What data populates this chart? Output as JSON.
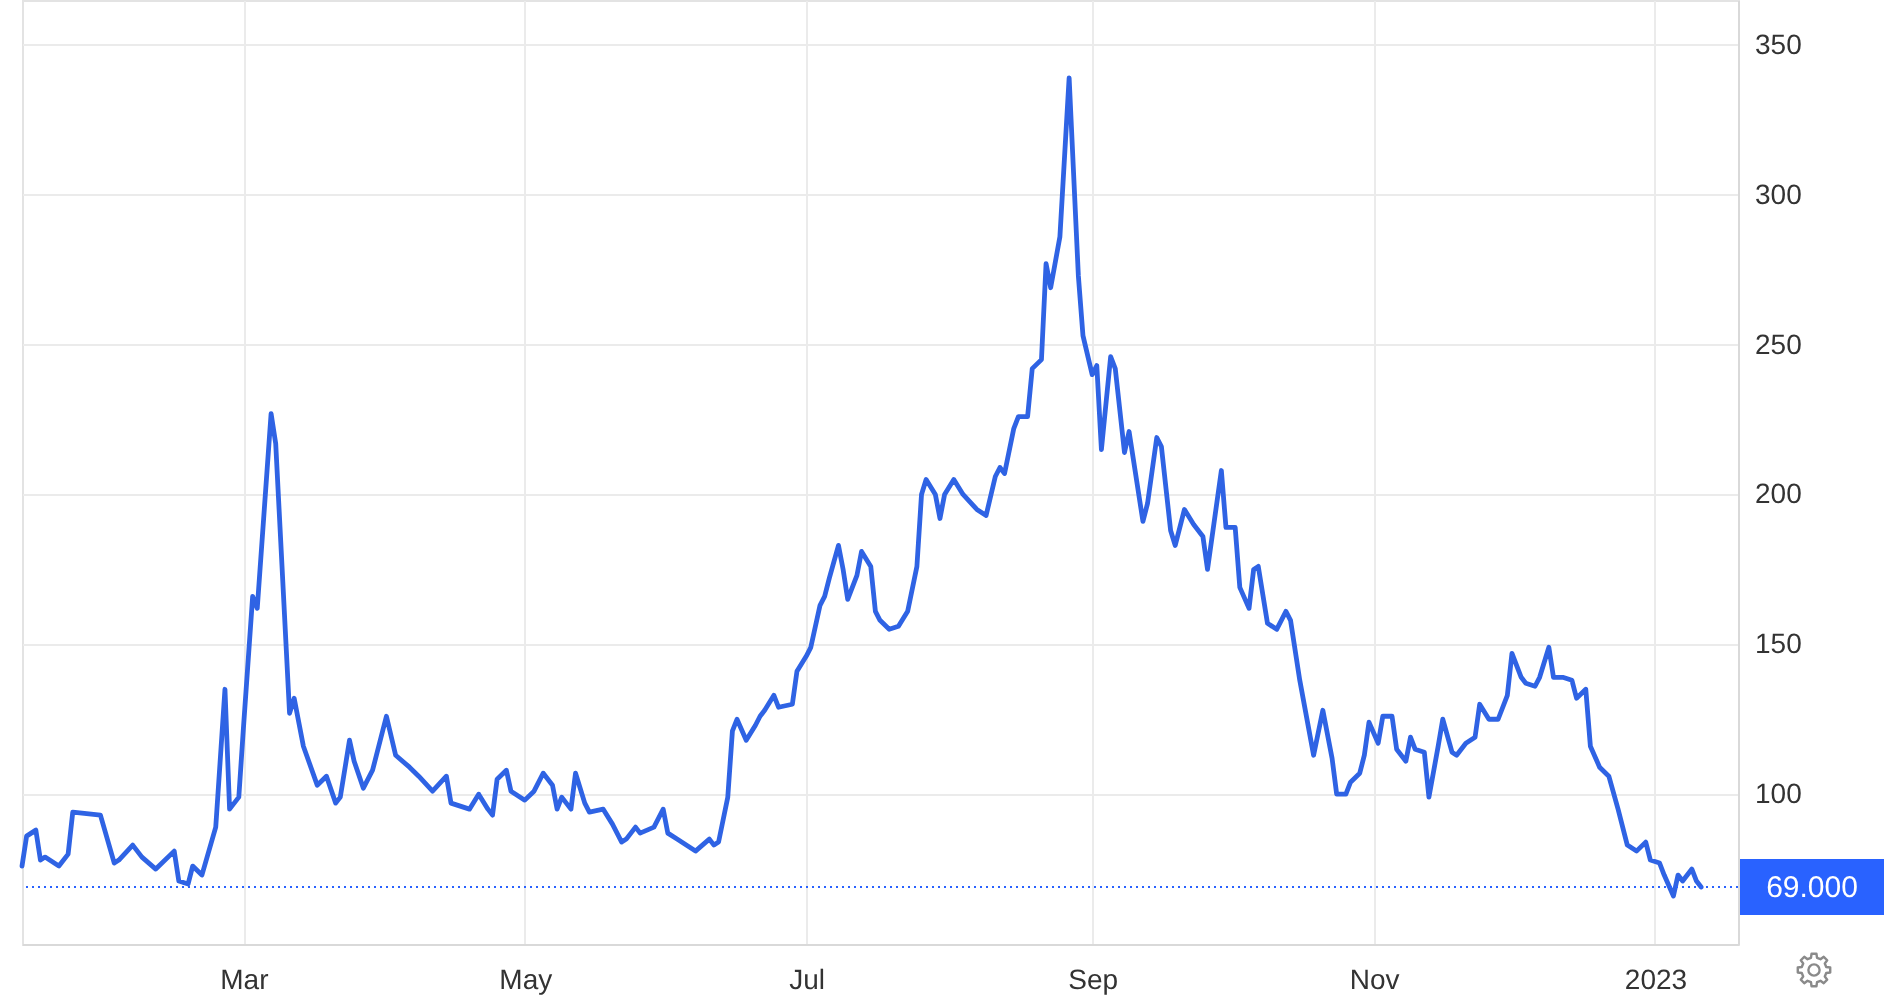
{
  "chart_data": {
    "type": "line",
    "x": [
      "2022-01-12",
      "2022-01-13",
      "2022-01-15",
      "2022-01-16",
      "2022-01-17",
      "2022-01-20",
      "2022-01-22",
      "2022-01-23",
      "2022-01-29",
      "2022-02-01",
      "2022-02-02",
      "2022-02-05",
      "2022-02-07",
      "2022-02-10",
      "2022-02-14",
      "2022-02-15",
      "2022-02-17",
      "2022-02-18",
      "2022-02-20",
      "2022-02-23",
      "2022-02-25",
      "2022-02-26",
      "2022-02-28",
      "2022-03-01",
      "2022-03-03",
      "2022-03-04",
      "2022-03-07",
      "2022-03-08",
      "2022-03-11",
      "2022-03-12",
      "2022-03-14",
      "2022-03-17",
      "2022-03-19",
      "2022-03-21",
      "2022-03-22",
      "2022-03-24",
      "2022-03-25",
      "2022-03-27",
      "2022-03-29",
      "2022-04-01",
      "2022-04-03",
      "2022-04-06",
      "2022-04-08",
      "2022-04-11",
      "2022-04-14",
      "2022-04-15",
      "2022-04-17",
      "2022-04-19",
      "2022-04-21",
      "2022-04-23",
      "2022-04-24",
      "2022-04-25",
      "2022-04-27",
      "2022-04-28",
      "2022-05-01",
      "2022-05-03",
      "2022-05-05",
      "2022-05-07",
      "2022-05-08",
      "2022-05-09",
      "2022-05-11",
      "2022-05-12",
      "2022-05-14",
      "2022-05-15",
      "2022-05-18",
      "2022-05-20",
      "2022-05-22",
      "2022-05-23",
      "2022-05-25",
      "2022-05-26",
      "2022-05-29",
      "2022-05-31",
      "2022-06-01",
      "2022-06-03",
      "2022-06-05",
      "2022-06-07",
      "2022-06-10",
      "2022-06-11",
      "2022-06-12",
      "2022-06-14",
      "2022-06-15",
      "2022-06-16",
      "2022-06-18",
      "2022-06-20",
      "2022-06-21",
      "2022-06-22",
      "2022-06-24",
      "2022-06-25",
      "2022-06-28",
      "2022-06-29",
      "2022-07-01",
      "2022-07-02",
      "2022-07-04",
      "2022-07-05",
      "2022-07-06",
      "2022-07-08",
      "2022-07-09",
      "2022-07-10",
      "2022-07-12",
      "2022-07-13",
      "2022-07-15",
      "2022-07-16",
      "2022-07-17",
      "2022-07-19",
      "2022-07-21",
      "2022-07-23",
      "2022-07-25",
      "2022-07-26",
      "2022-07-27",
      "2022-07-29",
      "2022-07-30",
      "2022-07-31",
      "2022-08-02",
      "2022-08-04",
      "2022-08-07",
      "2022-08-09",
      "2022-08-11",
      "2022-08-12",
      "2022-08-13",
      "2022-08-15",
      "2022-08-16",
      "2022-08-18",
      "2022-08-19",
      "2022-08-21",
      "2022-08-22",
      "2022-08-23",
      "2022-08-25",
      "2022-08-27",
      "2022-08-29",
      "2022-08-30",
      "2022-09-01",
      "2022-09-02",
      "2022-09-03",
      "2022-09-05",
      "2022-09-06",
      "2022-09-08",
      "2022-09-09",
      "2022-09-12",
      "2022-09-13",
      "2022-09-15",
      "2022-09-16",
      "2022-09-18",
      "2022-09-19",
      "2022-09-21",
      "2022-09-23",
      "2022-09-25",
      "2022-09-26",
      "2022-09-29",
      "2022-09-30",
      "2022-10-02",
      "2022-10-03",
      "2022-10-05",
      "2022-10-06",
      "2022-10-07",
      "2022-10-09",
      "2022-10-11",
      "2022-10-13",
      "2022-10-14",
      "2022-10-16",
      "2022-10-19",
      "2022-10-21",
      "2022-10-23",
      "2022-10-24",
      "2022-10-26",
      "2022-10-27",
      "2022-10-29",
      "2022-10-30",
      "2022-10-31",
      "2022-11-02",
      "2022-11-03",
      "2022-11-05",
      "2022-11-06",
      "2022-11-08",
      "2022-11-09",
      "2022-11-10",
      "2022-11-12",
      "2022-11-13",
      "2022-11-15",
      "2022-11-16",
      "2022-11-18",
      "2022-11-19",
      "2022-11-21",
      "2022-11-23",
      "2022-11-24",
      "2022-11-26",
      "2022-11-28",
      "2022-11-30",
      "2022-12-01",
      "2022-12-03",
      "2022-12-04",
      "2022-12-06",
      "2022-12-07",
      "2022-12-09",
      "2022-12-10",
      "2022-12-12",
      "2022-12-14",
      "2022-12-15",
      "2022-12-17",
      "2022-12-18",
      "2022-12-20",
      "2022-12-22",
      "2022-12-24",
      "2022-12-26",
      "2022-12-28",
      "2022-12-30",
      "2022-12-31",
      "2023-01-02",
      "2023-01-03",
      "2023-01-05",
      "2023-01-06",
      "2023-01-07",
      "2023-01-09",
      "2023-01-10",
      "2023-01-11"
    ],
    "series": [
      {
        "color": "#2f63e4",
        "values": [
          76,
          86,
          88,
          78,
          79,
          76,
          80,
          94,
          93,
          77,
          78,
          83,
          79,
          75,
          81,
          71,
          70,
          76,
          73,
          89,
          135,
          95,
          99,
          122,
          166,
          162,
          227,
          217,
          127,
          132,
          116,
          103,
          106,
          97,
          99,
          118,
          111,
          102,
          108,
          126,
          113,
          109,
          106,
          101,
          106,
          97,
          96,
          95,
          100,
          95,
          93,
          105,
          108,
          101,
          98,
          101,
          107,
          103,
          95,
          99,
          95,
          107,
          97,
          94,
          95,
          90,
          84,
          85,
          89,
          87,
          89,
          95,
          87,
          85,
          83,
          81,
          85,
          83,
          84,
          99,
          121,
          125,
          118,
          123,
          126,
          128,
          133,
          129,
          130,
          141,
          146,
          149,
          163,
          166,
          172,
          183,
          175,
          165,
          173,
          181,
          176,
          161,
          158,
          155,
          156,
          161,
          176,
          200,
          205,
          200,
          192,
          200,
          205,
          200,
          195,
          193,
          206,
          209,
          207,
          222,
          226,
          226,
          242,
          245,
          277,
          269,
          286,
          339,
          273,
          253,
          240,
          243,
          215,
          246,
          242,
          214,
          221,
          191,
          197,
          219,
          216,
          188,
          183,
          195,
          190,
          186,
          175,
          208,
          189,
          189,
          169,
          162,
          175,
          176,
          157,
          155,
          161,
          158,
          138,
          113,
          128,
          112,
          100,
          100,
          104,
          107,
          113,
          124,
          117,
          126,
          126,
          115,
          111,
          119,
          115,
          114,
          99,
          116,
          125,
          114,
          113,
          117,
          119,
          130,
          125,
          125,
          133,
          147,
          139,
          137,
          136,
          139,
          149,
          139,
          139,
          138,
          132,
          135,
          116,
          109,
          106,
          95,
          83,
          81,
          84,
          78,
          77,
          73,
          66,
          73,
          71,
          75,
          71,
          69
        ]
      }
    ],
    "xlim": [
      "2022-01-12",
      "2023-01-19"
    ],
    "xticks": [
      {
        "value": "2022-03-01",
        "label": "Mar"
      },
      {
        "value": "2022-05-01",
        "label": "May"
      },
      {
        "value": "2022-07-01",
        "label": "Jul"
      },
      {
        "value": "2022-09-01",
        "label": "Sep"
      },
      {
        "value": "2022-11-01",
        "label": "Nov"
      },
      {
        "value": "2023-01-01",
        "label": "2023"
      }
    ],
    "ylim": [
      50,
      365
    ],
    "yticks": [
      100,
      150,
      200,
      250,
      300,
      350
    ],
    "grid": true,
    "ref_lines": [
      {
        "axis": "y",
        "value": 69,
        "label": "69.000",
        "color": "#2962ff",
        "line_style": "dotted"
      }
    ]
  }
}
